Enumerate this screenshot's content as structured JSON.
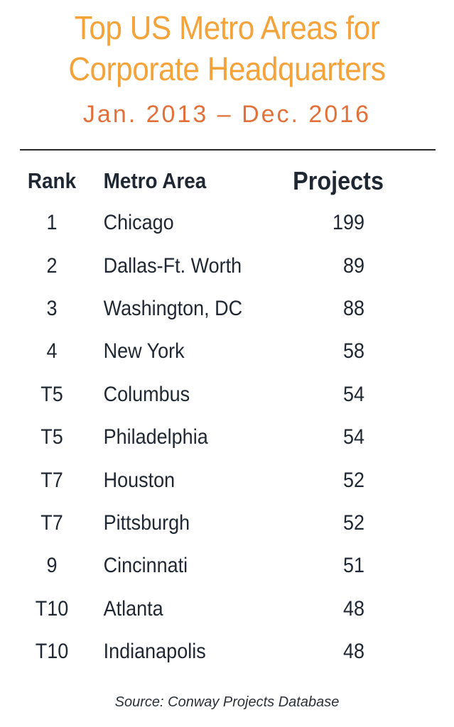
{
  "title_line1": "Top US Metro Areas for",
  "title_line2": "Corporate Headquarters",
  "subtitle": "Jan. 2013 – Dec. 2016",
  "source": "Source: Conway Projects Database",
  "colors": {
    "title": "#f3a33a",
    "subtitle": "#e2703a",
    "text": "#1f2733"
  },
  "chart_data": {
    "type": "table",
    "columns": [
      "Rank",
      "Metro Area",
      "Projects"
    ],
    "rows": [
      {
        "rank": "1",
        "metro": "Chicago",
        "projects": 199
      },
      {
        "rank": "2",
        "metro": "Dallas-Ft. Worth",
        "projects": 89
      },
      {
        "rank": "3",
        "metro": "Washington, DC",
        "projects": 88
      },
      {
        "rank": "4",
        "metro": "New York",
        "projects": 58
      },
      {
        "rank": "T5",
        "metro": "Columbus",
        "projects": 54
      },
      {
        "rank": "T5",
        "metro": "Philadelphia",
        "projects": 54
      },
      {
        "rank": "T7",
        "metro": "Houston",
        "projects": 52
      },
      {
        "rank": "T7",
        "metro": "Pittsburgh",
        "projects": 52
      },
      {
        "rank": "9",
        "metro": "Cincinnati",
        "projects": 51
      },
      {
        "rank": "T10",
        "metro": "Atlanta",
        "projects": 48
      },
      {
        "rank": "T10",
        "metro": "Indianapolis",
        "projects": 48
      }
    ]
  }
}
